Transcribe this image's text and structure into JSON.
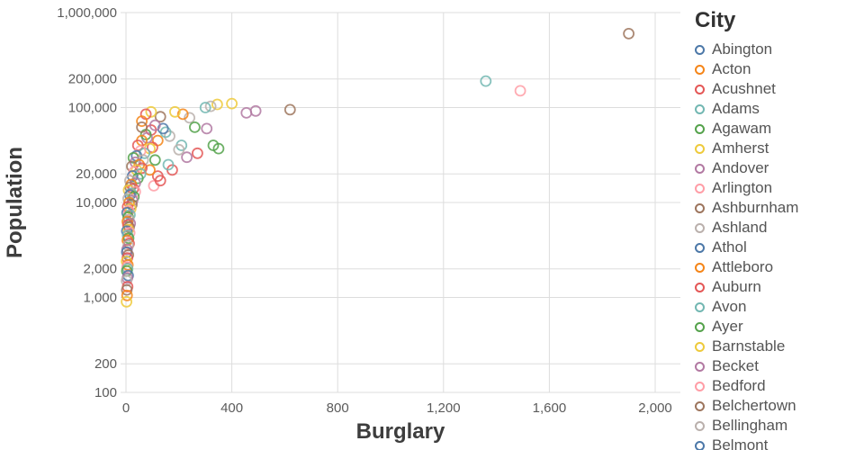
{
  "chart_data": {
    "type": "scatter",
    "title": "",
    "xlabel": "Burglary",
    "ylabel": "Population",
    "x_scale": "linear",
    "y_scale": "log",
    "xlim": [
      0,
      2000
    ],
    "ylim": [
      100,
      1000000
    ],
    "grid": true,
    "legend_position": "right",
    "x_ticks": [
      0,
      400,
      800,
      1200,
      1600,
      2000
    ],
    "x_tick_labels": [
      "0",
      "400",
      "800",
      "1,200",
      "1,600",
      "2,000"
    ],
    "y_ticks": [
      100,
      200,
      1000,
      2000,
      10000,
      20000,
      100000,
      200000,
      1000000
    ],
    "y_tick_labels": [
      "100",
      "200",
      "1,000",
      "2,000",
      "10,000",
      "20,000",
      "100,000",
      "200,000",
      "1,000,000"
    ],
    "legend_title": "City",
    "palette": [
      "#4c78a8",
      "#f58518",
      "#e45756",
      "#72b7b2",
      "#54a24b",
      "#eeca3b",
      "#b279a2",
      "#ff9da6",
      "#9d755d",
      "#bab0ac"
    ],
    "legend_items": [
      {
        "label": "Abington",
        "color": "#4c78a8"
      },
      {
        "label": "Acton",
        "color": "#f58518"
      },
      {
        "label": "Acushnet",
        "color": "#e45756"
      },
      {
        "label": "Adams",
        "color": "#72b7b2"
      },
      {
        "label": "Agawam",
        "color": "#54a24b"
      },
      {
        "label": "Amherst",
        "color": "#eeca3b"
      },
      {
        "label": "Andover",
        "color": "#b279a2"
      },
      {
        "label": "Arlington",
        "color": "#ff9da6"
      },
      {
        "label": "Ashburnham",
        "color": "#9d755d"
      },
      {
        "label": "Ashland",
        "color": "#bab0ac"
      },
      {
        "label": "Athol",
        "color": "#4c78a8"
      },
      {
        "label": "Attleboro",
        "color": "#f58518"
      },
      {
        "label": "Auburn",
        "color": "#e45756"
      },
      {
        "label": "Avon",
        "color": "#72b7b2"
      },
      {
        "label": "Ayer",
        "color": "#54a24b"
      },
      {
        "label": "Barnstable",
        "color": "#eeca3b"
      },
      {
        "label": "Becket",
        "color": "#b279a2"
      },
      {
        "label": "Bedford",
        "color": "#ff9da6"
      },
      {
        "label": "Belchertown",
        "color": "#9d755d"
      },
      {
        "label": "Bellingham",
        "color": "#bab0ac"
      },
      {
        "label": "Belmont",
        "color": "#4c78a8"
      }
    ],
    "points": [
      [
        1900,
        600000,
        8
      ],
      [
        1360,
        190000,
        3
      ],
      [
        1490,
        150000,
        7
      ],
      [
        620,
        95000,
        8
      ],
      [
        490,
        92000,
        6
      ],
      [
        455,
        88000,
        6
      ],
      [
        400,
        110000,
        5
      ],
      [
        345,
        108000,
        5
      ],
      [
        320,
        103000,
        9
      ],
      [
        300,
        100000,
        3
      ],
      [
        240,
        78000,
        9
      ],
      [
        215,
        85000,
        1
      ],
      [
        185,
        90000,
        5
      ],
      [
        130,
        80000,
        8
      ],
      [
        95,
        90000,
        5
      ],
      [
        75,
        85000,
        2
      ],
      [
        60,
        72000,
        1
      ],
      [
        305,
        60000,
        6
      ],
      [
        260,
        62000,
        4
      ],
      [
        330,
        40000,
        4
      ],
      [
        350,
        37000,
        4
      ],
      [
        270,
        33000,
        2
      ],
      [
        230,
        30000,
        6
      ],
      [
        210,
        40000,
        3
      ],
      [
        200,
        36000,
        9
      ],
      [
        175,
        22000,
        2
      ],
      [
        160,
        25000,
        3
      ],
      [
        165,
        50000,
        9
      ],
      [
        150,
        55000,
        3
      ],
      [
        140,
        60000,
        0
      ],
      [
        120,
        45000,
        1
      ],
      [
        110,
        28000,
        4
      ],
      [
        105,
        15000,
        7
      ],
      [
        130,
        17000,
        2
      ],
      [
        120,
        19000,
        2
      ],
      [
        90,
        22000,
        1
      ],
      [
        100,
        38000,
        2
      ],
      [
        95,
        58000,
        2
      ],
      [
        110,
        65000,
        6
      ],
      [
        80,
        48000,
        6
      ],
      [
        75,
        52000,
        4
      ],
      [
        60,
        62000,
        8
      ],
      [
        60,
        45000,
        1
      ],
      [
        45,
        40000,
        2
      ],
      [
        90,
        37000,
        5
      ],
      [
        70,
        33000,
        3
      ],
      [
        55,
        35000,
        7
      ],
      [
        40,
        31000,
        0
      ],
      [
        28,
        29500,
        4
      ],
      [
        65,
        28000,
        9
      ],
      [
        35,
        26500,
        6
      ],
      [
        50,
        25000,
        1
      ],
      [
        22,
        24000,
        8
      ],
      [
        60,
        23000,
        2
      ],
      [
        40,
        22000,
        5
      ],
      [
        30,
        21000,
        7
      ],
      [
        55,
        20000,
        3
      ],
      [
        25,
        19000,
        0
      ],
      [
        45,
        18000,
        4
      ],
      [
        15,
        17000,
        9
      ],
      [
        35,
        16000,
        6
      ],
      [
        20,
        15500,
        1
      ],
      [
        16,
        14500,
        8
      ],
      [
        28,
        14000,
        2
      ],
      [
        10,
        13500,
        5
      ],
      [
        35,
        13000,
        7
      ],
      [
        20,
        12500,
        3
      ],
      [
        15,
        12000,
        0
      ],
      [
        30,
        11500,
        4
      ],
      [
        8,
        11000,
        9
      ],
      [
        25,
        10500,
        6
      ],
      [
        12,
        10000,
        1
      ],
      [
        22,
        9500,
        8
      ],
      [
        6,
        9000,
        2
      ],
      [
        18,
        8600,
        5
      ],
      [
        10,
        8200,
        7
      ],
      [
        4,
        7800,
        0
      ],
      [
        15,
        7400,
        3
      ],
      [
        8,
        7000,
        4
      ],
      [
        11,
        6600,
        9
      ],
      [
        5,
        6300,
        1
      ],
      [
        16,
        6000,
        6
      ],
      [
        7,
        5800,
        2
      ],
      [
        12,
        5500,
        8
      ],
      [
        9,
        5200,
        5
      ],
      [
        3,
        5000,
        0
      ],
      [
        14,
        4800,
        7
      ],
      [
        6,
        4500,
        3
      ],
      [
        10,
        4200,
        4
      ],
      [
        5,
        4000,
        1
      ],
      [
        12,
        3700,
        2
      ],
      [
        8,
        3500,
        9
      ],
      [
        4,
        3200,
        6
      ],
      [
        3,
        3000,
        0
      ],
      [
        9,
        2800,
        8
      ],
      [
        5,
        2600,
        2
      ],
      [
        2,
        2400,
        5
      ],
      [
        7,
        2200,
        1
      ],
      [
        4,
        2100,
        7
      ],
      [
        6,
        2000,
        3
      ],
      [
        3,
        1900,
        4
      ],
      [
        8,
        1700,
        0
      ],
      [
        5,
        1600,
        6
      ],
      [
        2,
        1500,
        9
      ],
      [
        6,
        1300,
        2
      ],
      [
        3,
        1200,
        8
      ],
      [
        4,
        1050,
        1
      ],
      [
        2,
        900,
        5
      ]
    ]
  }
}
